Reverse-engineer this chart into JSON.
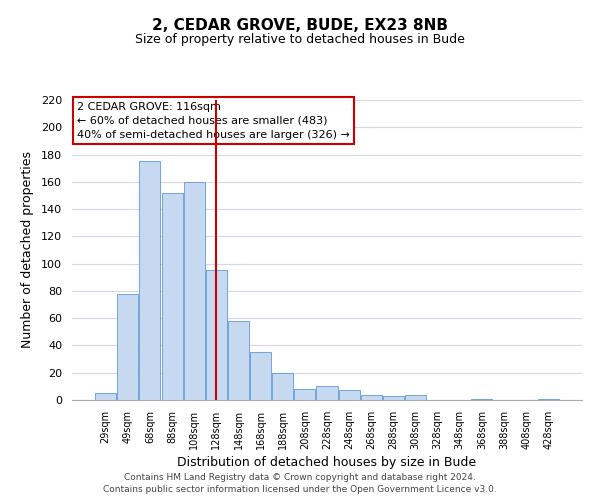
{
  "title": "2, CEDAR GROVE, BUDE, EX23 8NB",
  "subtitle": "Size of property relative to detached houses in Bude",
  "xlabel": "Distribution of detached houses by size in Bude",
  "ylabel": "Number of detached properties",
  "bar_color": "#c6d9f0",
  "bar_edge_color": "#5b9bd5",
  "categories": [
    "29sqm",
    "49sqm",
    "68sqm",
    "88sqm",
    "108sqm",
    "128sqm",
    "148sqm",
    "168sqm",
    "188sqm",
    "208sqm",
    "228sqm",
    "248sqm",
    "268sqm",
    "288sqm",
    "308sqm",
    "328sqm",
    "348sqm",
    "368sqm",
    "388sqm",
    "408sqm",
    "428sqm"
  ],
  "values": [
    5,
    78,
    175,
    152,
    160,
    95,
    58,
    35,
    20,
    8,
    10,
    7,
    4,
    3,
    4,
    0,
    0,
    1,
    0,
    0,
    1
  ],
  "ylim": [
    0,
    220
  ],
  "yticks": [
    0,
    20,
    40,
    60,
    80,
    100,
    120,
    140,
    160,
    180,
    200,
    220
  ],
  "vline_x": 5.0,
  "vline_color": "#cc0000",
  "annotation_title": "2 CEDAR GROVE: 116sqm",
  "annotation_line1": "← 60% of detached houses are smaller (483)",
  "annotation_line2": "40% of semi-detached houses are larger (326) →",
  "annotation_box_color": "#ffffff",
  "annotation_box_edge": "#cc0000",
  "footer_line1": "Contains HM Land Registry data © Crown copyright and database right 2024.",
  "footer_line2": "Contains public sector information licensed under the Open Government Licence v3.0.",
  "background_color": "#ffffff",
  "grid_color": "#d0d8e8"
}
